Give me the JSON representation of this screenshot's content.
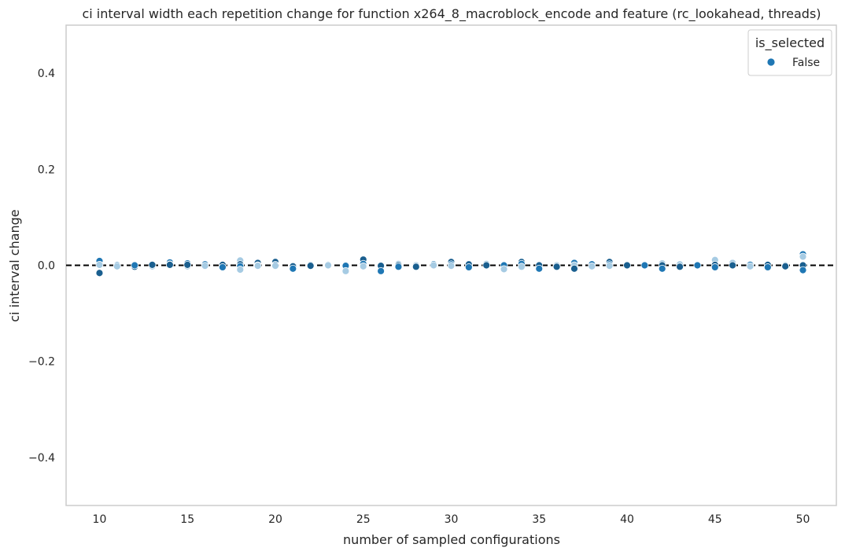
{
  "chart_data": {
    "type": "scatter",
    "title": "ci interval width each repetition change for function x264_8_macroblock_encode and feature (rc_lookahead, threads)",
    "xlabel": "number of sampled configurations",
    "ylabel": "ci interval change",
    "xlim": [
      8.1,
      51.9
    ],
    "ylim": [
      -0.5,
      0.5
    ],
    "xticks": [
      "10",
      "15",
      "20",
      "25",
      "30",
      "35",
      "40",
      "45",
      "50"
    ],
    "yticks": [
      "−0.4",
      "−0.2",
      "0.0",
      "0.2",
      "0.4"
    ],
    "xtick_values": [
      10,
      15,
      20,
      25,
      30,
      35,
      40,
      45,
      50
    ],
    "ytick_values": [
      -0.4,
      -0.2,
      0.0,
      0.2,
      0.4
    ],
    "grid": false,
    "reference_line": {
      "y": 0.0,
      "style": "dashed",
      "color": "#000000"
    },
    "legend": {
      "title": "is_selected",
      "placement": "top-right",
      "entries": [
        "False"
      ]
    },
    "colors": {
      "point": "#1f77b4",
      "point_light": "#a6cbe3",
      "point_dark": "#1a5f8f"
    },
    "series": [
      {
        "name": "False",
        "points": [
          [
            10,
            0.009
          ],
          [
            10,
            0.001
          ],
          [
            10,
            -0.016
          ],
          [
            11,
            0.0
          ],
          [
            11,
            -0.002
          ],
          [
            12,
            -0.003
          ],
          [
            12,
            0.0
          ],
          [
            13,
            -0.002
          ],
          [
            13,
            0.001
          ],
          [
            14,
            0.006
          ],
          [
            14,
            0.002
          ],
          [
            14,
            0.001
          ],
          [
            15,
            0.004
          ],
          [
            15,
            -0.002
          ],
          [
            15,
            0.001
          ],
          [
            16,
            0.002
          ],
          [
            16,
            -0.001
          ],
          [
            17,
            0.001
          ],
          [
            17,
            -0.004
          ],
          [
            18,
            0.01
          ],
          [
            18,
            0.002
          ],
          [
            18,
            -0.002
          ],
          [
            18,
            -0.009
          ],
          [
            19,
            0.005
          ],
          [
            19,
            0.0
          ],
          [
            19,
            -0.001
          ],
          [
            20,
            0.007
          ],
          [
            20,
            0.001
          ],
          [
            20,
            -0.001
          ],
          [
            21,
            -0.002
          ],
          [
            21,
            -0.007
          ],
          [
            22,
            0.001
          ],
          [
            22,
            -0.001
          ],
          [
            23,
            0.001
          ],
          [
            23,
            0.0
          ],
          [
            24,
            0.0
          ],
          [
            24,
            -0.001
          ],
          [
            24,
            -0.012
          ],
          [
            25,
            0.012
          ],
          [
            25,
            0.003
          ],
          [
            25,
            -0.002
          ],
          [
            26,
            -0.001
          ],
          [
            26,
            -0.012
          ],
          [
            27,
            0.003
          ],
          [
            27,
            0.0
          ],
          [
            27,
            -0.003
          ],
          [
            28,
            0.0
          ],
          [
            28,
            -0.003
          ],
          [
            29,
            0.002
          ],
          [
            29,
            0.0
          ],
          [
            30,
            0.007
          ],
          [
            30,
            0.002
          ],
          [
            30,
            -0.001
          ],
          [
            31,
            0.002
          ],
          [
            31,
            -0.004
          ],
          [
            32,
            0.003
          ],
          [
            32,
            0.0
          ],
          [
            33,
            0.0
          ],
          [
            33,
            -0.008
          ],
          [
            34,
            0.007
          ],
          [
            34,
            0.003
          ],
          [
            34,
            -0.003
          ],
          [
            35,
            0.0
          ],
          [
            35,
            -0.007
          ],
          [
            36,
            0.0
          ],
          [
            36,
            -0.003
          ],
          [
            37,
            0.005
          ],
          [
            37,
            0.0
          ],
          [
            37,
            -0.007
          ],
          [
            38,
            0.002
          ],
          [
            38,
            -0.002
          ],
          [
            39,
            0.007
          ],
          [
            39,
            0.002
          ],
          [
            39,
            -0.001
          ],
          [
            40,
            0.0
          ],
          [
            41,
            0.0
          ],
          [
            42,
            0.004
          ],
          [
            42,
            0.0
          ],
          [
            42,
            -0.007
          ],
          [
            43,
            0.002
          ],
          [
            43,
            -0.003
          ],
          [
            44,
            0.0
          ],
          [
            45,
            0.011
          ],
          [
            45,
            0.001
          ],
          [
            45,
            -0.004
          ],
          [
            46,
            0.005
          ],
          [
            46,
            0.0
          ],
          [
            47,
            0.001
          ],
          [
            47,
            -0.002
          ],
          [
            48,
            0.001
          ],
          [
            48,
            -0.004
          ],
          [
            49,
            0.0
          ],
          [
            49,
            -0.002
          ],
          [
            50,
            0.023
          ],
          [
            50,
            0.018
          ],
          [
            50,
            0.0
          ],
          [
            50,
            -0.01
          ]
        ]
      }
    ]
  }
}
